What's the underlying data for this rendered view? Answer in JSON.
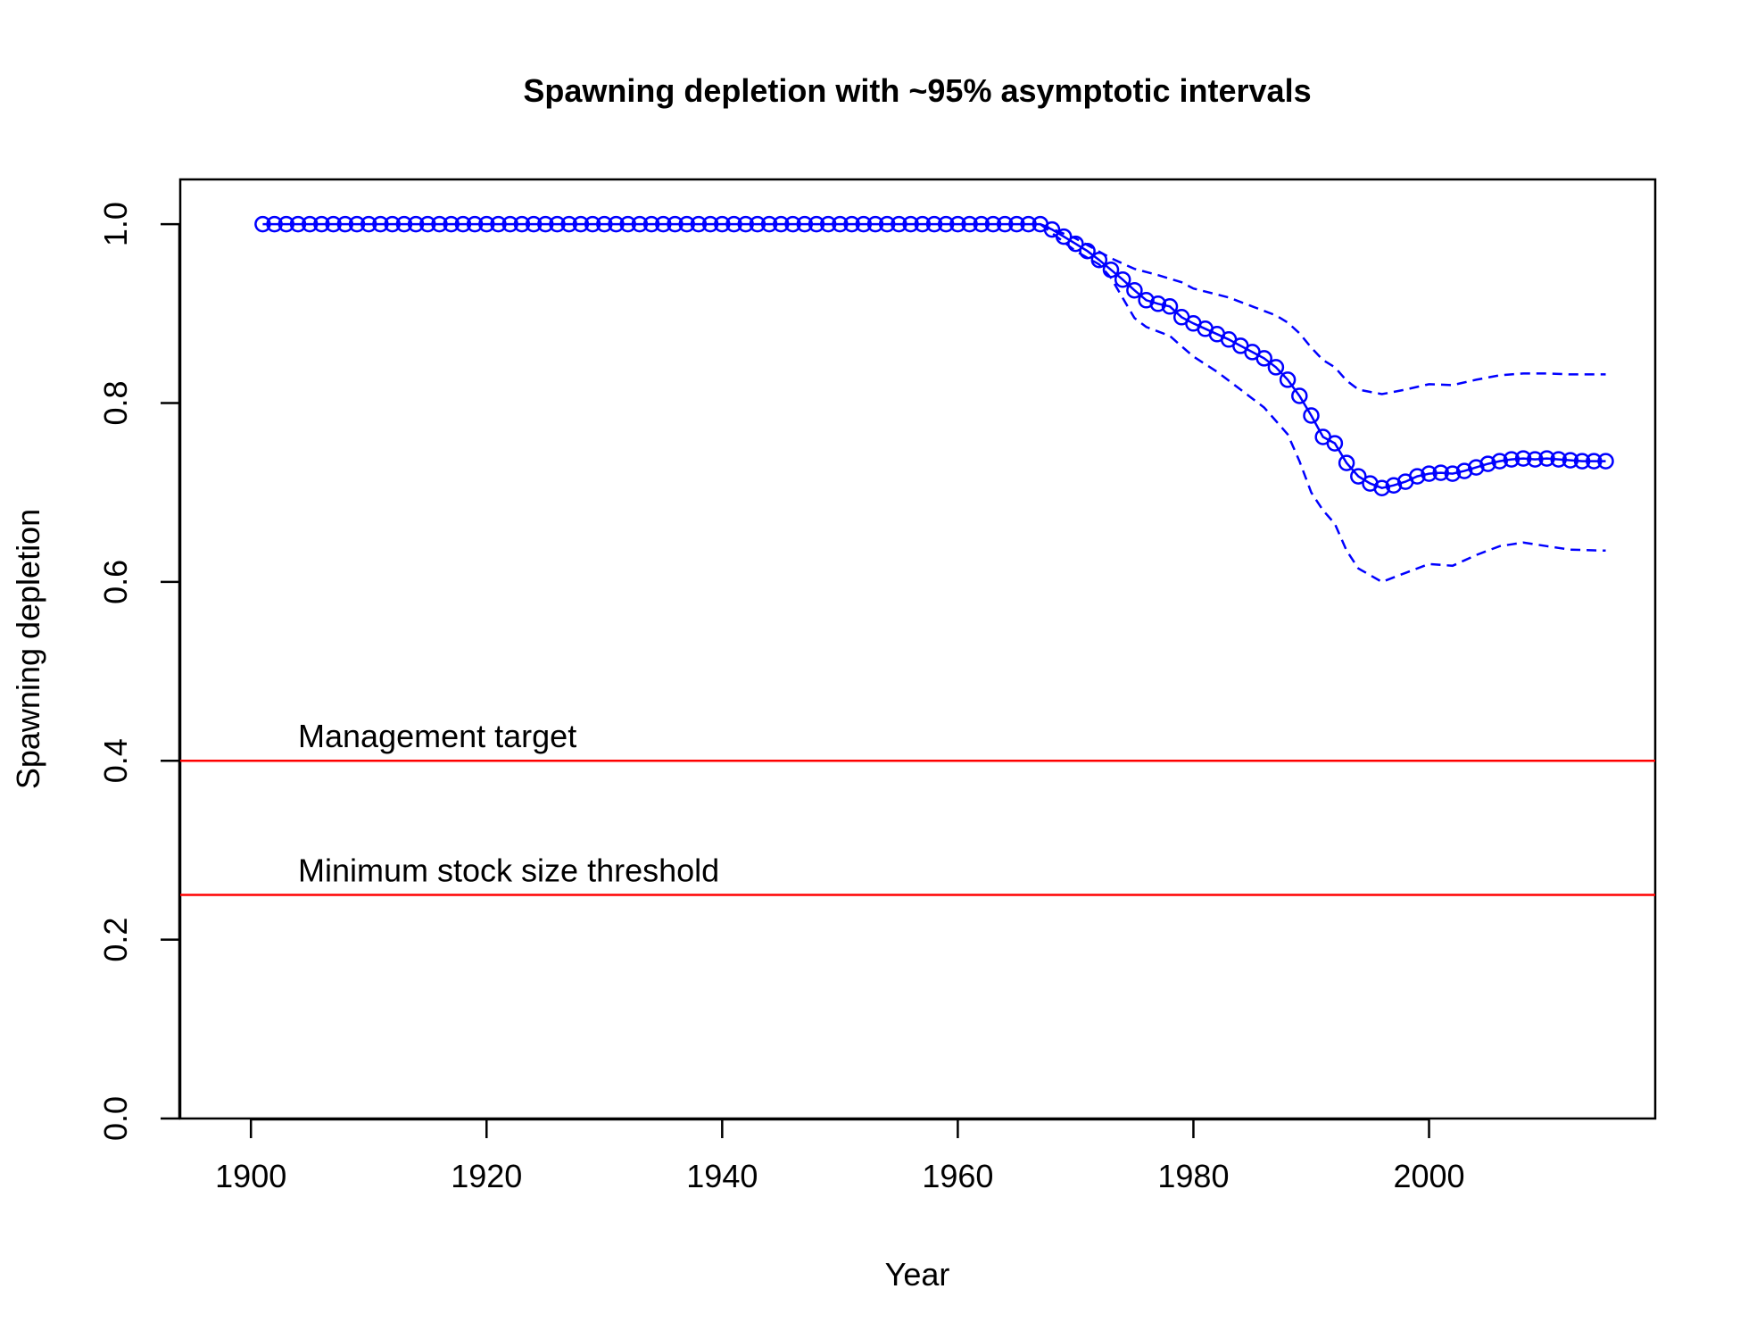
{
  "chart_data": {
    "type": "line",
    "title": "Spawning depletion with ~95% asymptotic intervals",
    "xlabel": "Year",
    "ylabel": "Spawning depletion",
    "xlim": [
      1894,
      2019.2
    ],
    "ylim": [
      0,
      1.05
    ],
    "x_ticks": [
      1900,
      1920,
      1940,
      1960,
      1980,
      2000
    ],
    "x_tick_labels": [
      "1900",
      "1920",
      "1940",
      "1960",
      "1980",
      "2000"
    ],
    "y_ticks": [
      0.0,
      0.2,
      0.4,
      0.6,
      0.8,
      1.0
    ],
    "y_tick_labels": [
      "0.0",
      "0.2",
      "0.4",
      "0.6",
      "0.8",
      "1.0"
    ],
    "grid": false,
    "colors": {
      "series": "#0000ff",
      "reference": "#ff0000",
      "axis": "#000000"
    },
    "reference_lines": [
      {
        "y": 0.4,
        "label": "Management target"
      },
      {
        "y": 0.25,
        "label": "Minimum stock size threshold"
      }
    ],
    "x_start": 1901,
    "x_end": 2015,
    "series_key_points": [
      [
        1901,
        1.0
      ],
      [
        1967,
        1.0
      ],
      [
        1968,
        0.994
      ],
      [
        1969,
        0.986
      ],
      [
        1970,
        0.978
      ],
      [
        1971,
        0.97
      ],
      [
        1972,
        0.96
      ],
      [
        1973,
        0.949
      ],
      [
        1974,
        0.938
      ],
      [
        1975,
        0.926
      ],
      [
        1976,
        0.915
      ],
      [
        1977,
        0.911
      ],
      [
        1978,
        0.908
      ],
      [
        1979,
        0.896
      ],
      [
        1980,
        0.889
      ],
      [
        1981,
        0.883
      ],
      [
        1982,
        0.877
      ],
      [
        1983,
        0.871
      ],
      [
        1984,
        0.864
      ],
      [
        1985,
        0.857
      ],
      [
        1986,
        0.85
      ],
      [
        1987,
        0.84
      ],
      [
        1988,
        0.826
      ],
      [
        1989,
        0.808
      ],
      [
        1990,
        0.786
      ],
      [
        1991,
        0.762
      ],
      [
        1992,
        0.755
      ],
      [
        1993,
        0.733
      ],
      [
        1994,
        0.718
      ],
      [
        1995,
        0.71
      ],
      [
        1996,
        0.705
      ],
      [
        1997,
        0.708
      ],
      [
        1998,
        0.712
      ],
      [
        1999,
        0.718
      ],
      [
        2000,
        0.721
      ],
      [
        2001,
        0.722
      ],
      [
        2002,
        0.721
      ],
      [
        2003,
        0.724
      ],
      [
        2004,
        0.728
      ],
      [
        2005,
        0.732
      ],
      [
        2006,
        0.735
      ],
      [
        2007,
        0.737
      ],
      [
        2008,
        0.738
      ],
      [
        2009,
        0.737
      ],
      [
        2010,
        0.738
      ],
      [
        2011,
        0.737
      ],
      [
        2012,
        0.736
      ],
      [
        2013,
        0.735
      ],
      [
        2014,
        0.735
      ],
      [
        2015,
        0.735
      ]
    ],
    "upper_key_points": [
      [
        1967,
        1.0
      ],
      [
        1970,
        0.984
      ],
      [
        1973,
        0.962
      ],
      [
        1975,
        0.95
      ],
      [
        1977,
        0.943
      ],
      [
        1979,
        0.935
      ],
      [
        1980,
        0.928
      ],
      [
        1983,
        0.918
      ],
      [
        1985,
        0.908
      ],
      [
        1987,
        0.898
      ],
      [
        1988,
        0.89
      ],
      [
        1989,
        0.878
      ],
      [
        1990,
        0.862
      ],
      [
        1991,
        0.848
      ],
      [
        1992,
        0.84
      ],
      [
        1993,
        0.825
      ],
      [
        1994,
        0.815
      ],
      [
        1996,
        0.81
      ],
      [
        1998,
        0.815
      ],
      [
        2000,
        0.821
      ],
      [
        2002,
        0.82
      ],
      [
        2004,
        0.826
      ],
      [
        2006,
        0.831
      ],
      [
        2008,
        0.833
      ],
      [
        2010,
        0.833
      ],
      [
        2012,
        0.832
      ],
      [
        2015,
        0.832
      ]
    ],
    "lower_key_points": [
      [
        1967,
        1.0
      ],
      [
        1970,
        0.97
      ],
      [
        1972,
        0.955
      ],
      [
        1973,
        0.94
      ],
      [
        1975,
        0.895
      ],
      [
        1976,
        0.885
      ],
      [
        1978,
        0.875
      ],
      [
        1980,
        0.852
      ],
      [
        1982,
        0.835
      ],
      [
        1984,
        0.815
      ],
      [
        1986,
        0.795
      ],
      [
        1987,
        0.78
      ],
      [
        1988,
        0.765
      ],
      [
        1989,
        0.735
      ],
      [
        1990,
        0.7
      ],
      [
        1991,
        0.68
      ],
      [
        1992,
        0.665
      ],
      [
        1993,
        0.635
      ],
      [
        1994,
        0.615
      ],
      [
        1996,
        0.6
      ],
      [
        1998,
        0.61
      ],
      [
        2000,
        0.62
      ],
      [
        2002,
        0.618
      ],
      [
        2004,
        0.63
      ],
      [
        2006,
        0.64
      ],
      [
        2008,
        0.644
      ],
      [
        2010,
        0.64
      ],
      [
        2012,
        0.636
      ],
      [
        2015,
        0.635
      ]
    ]
  }
}
